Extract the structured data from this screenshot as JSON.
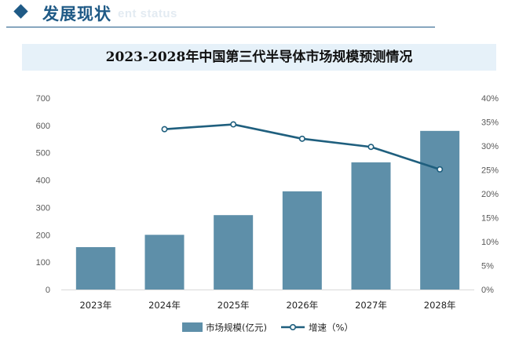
{
  "header": {
    "title": "发展现状",
    "subtitle": "ent status"
  },
  "colors": {
    "header_accent": "#1f5a86",
    "bar": "#5e8fa9",
    "line": "#1f5f7e"
  },
  "chart_data": {
    "type": "bar",
    "title": "2023-2028年中国第三代半导体市场规模预测情况",
    "categories": [
      "2023年",
      "2024年",
      "2025年",
      "2026年",
      "2027年",
      "2028年"
    ],
    "series": [
      {
        "name": "市场规模(亿元)",
        "type": "bar",
        "axis": "left",
        "values": [
          155,
          200,
          272,
          359,
          465,
          580
        ]
      },
      {
        "name": "增速（%）",
        "type": "line",
        "axis": "right",
        "values": [
          null,
          33.5,
          34.5,
          31.5,
          29.8,
          25.1
        ]
      }
    ],
    "y_left": {
      "min": 0,
      "max": 700,
      "ticks": [
        "0",
        "100",
        "200",
        "300",
        "400",
        "500",
        "600",
        "700"
      ]
    },
    "y_right": {
      "min": 0,
      "max": 40,
      "ticks": [
        "0%",
        "5%",
        "10%",
        "15%",
        "20%",
        "25%",
        "30%",
        "35%",
        "40%"
      ]
    },
    "grid": false,
    "legend_position": "bottom"
  }
}
